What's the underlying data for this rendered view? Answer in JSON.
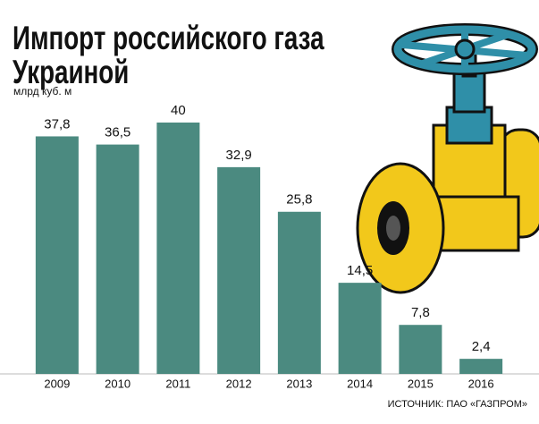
{
  "chart_data": {
    "type": "bar",
    "title": "Импорт российского газа Украиной",
    "unit": "млрд куб. м",
    "source": "ИСТОЧНИК: ПАО «ГАЗПРОМ»",
    "categories": [
      "2009",
      "2010",
      "2011",
      "2012",
      "2013",
      "2014",
      "2015",
      "2016"
    ],
    "values": [
      37.8,
      36.5,
      40,
      32.9,
      25.8,
      14.5,
      7.8,
      2.4
    ],
    "value_labels": [
      "37,8",
      "36,5",
      "40",
      "32,9",
      "25,8",
      "14,5",
      "7,8",
      "2,4"
    ],
    "color": "#4b8a80",
    "ylim": [
      0,
      40
    ]
  }
}
